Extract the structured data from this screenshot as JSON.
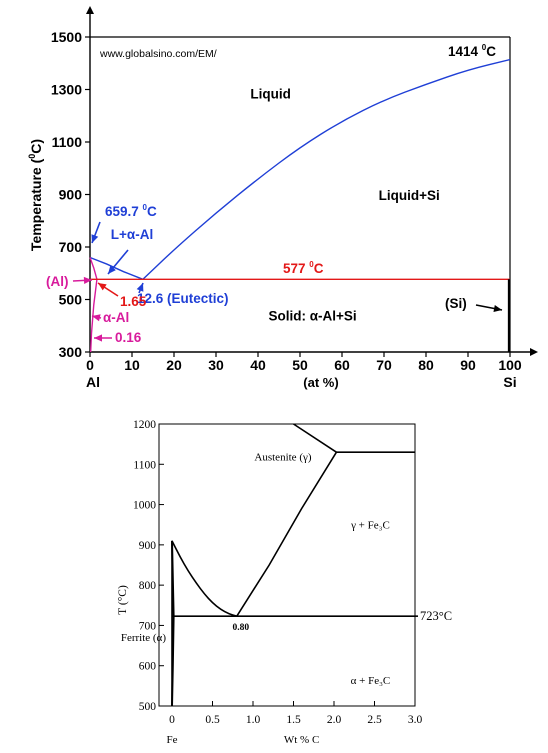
{
  "chart_data": [
    {
      "type": "line",
      "title": "",
      "watermark": "www.globalsino.com/EM/",
      "ylabel_main": "Temperature (",
      "ylabel_sup": "0",
      "ylabel_tail": "C)",
      "xlabel": "(at %)",
      "x_left_label": "Al",
      "x_right_label": "Si",
      "xlim": [
        0,
        100
      ],
      "ylim": [
        300,
        1500
      ],
      "xticks": [
        0,
        10,
        20,
        30,
        40,
        50,
        60,
        70,
        80,
        90,
        100
      ],
      "yticks": [
        300,
        500,
        700,
        900,
        1100,
        1300,
        1500
      ],
      "series": [
        {
          "key": "liquidus_si",
          "color": "#1f3fd6",
          "points": [
            [
              12.6,
              577
            ],
            [
              20,
              690
            ],
            [
              30,
              830
            ],
            [
              40,
              960
            ],
            [
              50,
              1080
            ],
            [
              60,
              1180
            ],
            [
              70,
              1260
            ],
            [
              80,
              1320
            ],
            [
              90,
              1375
            ],
            [
              100,
              1414
            ]
          ]
        },
        {
          "key": "liquidus_al",
          "color": "#1f3fd6",
          "points": [
            [
              0,
              660
            ],
            [
              4,
              635
            ],
            [
              8,
              606
            ],
            [
              12.6,
              577
            ]
          ]
        },
        {
          "key": "solidus_al",
          "color": "#d81b9c",
          "points": [
            [
              0,
              660
            ],
            [
              0.9,
              620
            ],
            [
              1.65,
              577
            ]
          ]
        },
        {
          "key": "solvus_al",
          "color": "#d81b9c",
          "points": [
            [
              1.65,
              577
            ],
            [
              0.9,
              480
            ],
            [
              0.35,
              370
            ],
            [
              0.16,
              300
            ]
          ]
        },
        {
          "key": "eutectic_line",
          "color": "#e31818",
          "points": [
            [
              0,
              577
            ],
            [
              100,
              577
            ]
          ]
        },
        {
          "key": "si_line",
          "color": "#000000",
          "points": [
            [
              99.8,
              300
            ],
            [
              99.8,
              577
            ]
          ]
        }
      ],
      "region_labels": [
        {
          "text": "Liquid",
          "x": 43,
          "y": 1265,
          "color": "#000000"
        },
        {
          "text": "Liquid+Si",
          "x": 76,
          "y": 880,
          "color": "#000000"
        },
        {
          "text": "Solid: α-Al+Si",
          "x": 53,
          "y": 420,
          "color": "#000000"
        },
        {
          "text": "L+α-Al",
          "x": 10,
          "y": 730,
          "color": "#1f3fd6"
        }
      ],
      "annotations": {
        "melt_si": {
          "text": "1414",
          "unit": "C"
        },
        "melt_al": {
          "text": "659.7",
          "unit": "C"
        },
        "eutectic_temp": {
          "text": "577",
          "unit": "C"
        },
        "eutectic_comp": {
          "number": "12.6",
          "rest": " (Eutectic)"
        },
        "al_phase": "(Al)",
        "solubility_max": "1.65",
        "alpha_al": "α-Al",
        "solubility_min": "0.16",
        "si_phase": "(Si)",
        "degree_sup": "0"
      }
    },
    {
      "type": "line",
      "title": "",
      "ylabel": "T (°C)",
      "xlabel": "Wt % C",
      "x_left_label": "Fe",
      "xlim": [
        0,
        3.0
      ],
      "ylim": [
        500,
        1200
      ],
      "xticks": [
        "0",
        "0.5",
        "1.0",
        "1.5",
        "2.0",
        "2.5",
        "3.0"
      ],
      "yticks": [
        500,
        600,
        700,
        800,
        900,
        1000,
        1100,
        1200
      ],
      "series": [
        {
          "key": "a3",
          "points": [
            [
              0,
              910
            ],
            [
              0.1,
              870
            ],
            [
              0.2,
              835
            ],
            [
              0.3,
              805
            ],
            [
              0.4,
              778
            ],
            [
              0.5,
              756
            ],
            [
              0.6,
              740
            ],
            [
              0.7,
              729
            ],
            [
              0.8,
              723
            ]
          ]
        },
        {
          "key": "acm",
          "points": [
            [
              0.8,
              723
            ],
            [
              1.2,
              850
            ],
            [
              1.6,
              990
            ],
            [
              2.03,
              1130
            ]
          ]
        },
        {
          "key": "solidus_top",
          "points": [
            [
              1.5,
              1200
            ],
            [
              2.03,
              1130
            ]
          ]
        },
        {
          "key": "eutectic_horizontal",
          "points": [
            [
              2.03,
              1130
            ],
            [
              3.0,
              1130
            ]
          ]
        },
        {
          "key": "eutectoid",
          "points": [
            [
              0,
              723
            ],
            [
              3.0,
              723
            ]
          ]
        },
        {
          "key": "ferrite_solvus",
          "points": [
            [
              0.0,
              910
            ],
            [
              0.02,
              723
            ],
            [
              0.01,
              600
            ],
            [
              0.0,
              500
            ]
          ]
        },
        {
          "key": "ferrite_left",
          "points": [
            [
              0,
              500
            ],
            [
              0,
              910
            ]
          ]
        }
      ],
      "region_labels": [
        {
          "text": "Austenite (γ)",
          "x": 1.37,
          "y": 1110
        },
        {
          "text": "γ + Fe₃C",
          "x": 2.45,
          "y": 940
        },
        {
          "text": "α + Fe₃C",
          "x": 2.45,
          "y": 555
        }
      ],
      "annotations": {
        "eutectoid_temp": "723°C",
        "eutectoid_comp": "0.80",
        "ferrite": "Ferrite (α)"
      }
    }
  ]
}
